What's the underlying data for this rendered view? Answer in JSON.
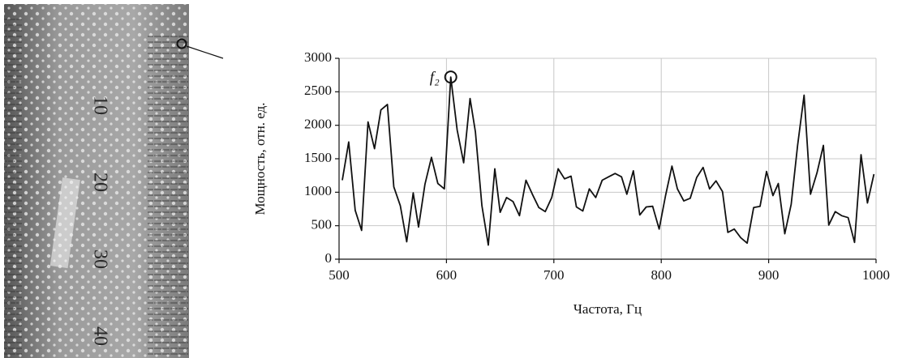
{
  "chart_data": {
    "type": "line",
    "xlabel": "Частота, Гц",
    "ylabel": "Мощность, отн. ед.",
    "x": [
      503,
      509,
      515,
      521,
      527,
      533,
      539,
      545,
      551,
      557,
      563,
      569,
      574,
      580,
      586,
      592,
      598,
      604,
      610,
      616,
      622,
      627,
      633,
      639,
      645,
      650,
      656,
      662,
      668,
      674,
      680,
      686,
      692,
      698,
      704,
      710,
      716,
      721,
      727,
      733,
      739,
      745,
      751,
      757,
      763,
      768,
      774,
      780,
      786,
      792,
      798,
      804,
      810,
      815,
      821,
      827,
      833,
      839,
      845,
      851,
      857,
      862,
      868,
      874,
      880,
      886,
      892,
      898,
      904,
      909,
      915,
      921,
      927,
      933,
      939,
      945,
      951,
      956,
      962,
      968,
      974,
      980,
      986,
      992,
      998
    ],
    "series": [
      {
        "name": "power",
        "color": "#111111",
        "values": [
          1180,
          1750,
          730,
          430,
          2050,
          1650,
          2230,
          2310,
          1080,
          800,
          260,
          990,
          480,
          1120,
          1520,
          1130,
          1050,
          2720,
          1930,
          1440,
          2400,
          1900,
          800,
          210,
          1350,
          700,
          920,
          860,
          650,
          1180,
          970,
          770,
          710,
          920,
          1350,
          1200,
          1240,
          780,
          720,
          1050,
          920,
          1180,
          1230,
          1280,
          1230,
          970,
          1320,
          660,
          780,
          790,
          450,
          950,
          1390,
          1050,
          870,
          910,
          1220,
          1370,
          1050,
          1170,
          1010,
          400,
          450,
          320,
          240,
          770,
          790,
          1310,
          950,
          1130,
          380,
          820,
          1700,
          2450,
          970,
          1290,
          1700,
          510,
          710,
          650,
          620,
          250,
          1560,
          840,
          1270
        ]
      }
    ],
    "xlim": [
      500,
      1000
    ],
    "xticks": [
      500,
      600,
      700,
      800,
      900,
      1000
    ],
    "ylim": [
      0,
      3000
    ],
    "yticks": [
      0,
      500,
      1000,
      1500,
      2000,
      2500,
      3000
    ],
    "grid": true,
    "annotations": [
      {
        "text": "f₂",
        "x": 604,
        "y": 2720
      }
    ]
  },
  "photo": {
    "labels": [
      "10",
      "20",
      "30",
      "40"
    ]
  }
}
